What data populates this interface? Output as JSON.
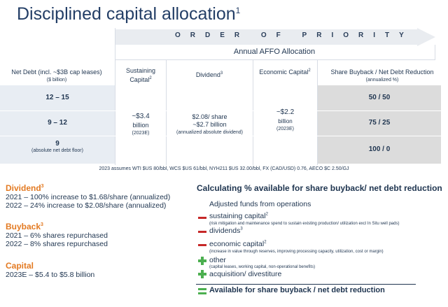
{
  "title": "Disciplined capital allocation",
  "title_sup": "1",
  "priority_banner": "ORDER OF PRIORITY",
  "affo_label": "Annual AFFO Allocation",
  "headers": {
    "net_debt": "Net Debt (incl. ~$3B cap leases)",
    "net_debt_sub": "($ billion)",
    "sustaining": "Sustaining Capital",
    "sustaining_sup": "2",
    "dividend": "Dividend",
    "dividend_sup": "3",
    "economic": "Economic Capital",
    "economic_sup": "2",
    "buyback": "Share Buyback / Net Debt Reduction",
    "buyback_sub": "(annualized %)"
  },
  "rows": [
    {
      "net_debt": "12 – 15",
      "net_debt_note": "",
      "split": "50 / 50"
    },
    {
      "net_debt": "9 – 12",
      "net_debt_note": "",
      "split": "75 / 25"
    },
    {
      "net_debt": "9",
      "net_debt_note": "(absolute net debt floor)",
      "split": "100 / 0"
    }
  ],
  "sustaining_value": "~$3.4",
  "sustaining_unit": "billion",
  "sustaining_year": "(2023E)",
  "dividend_line1": "$2.08/ share",
  "dividend_line2": "~$2.7 billion",
  "dividend_line3": "(annualized absolute dividend)",
  "economic_value": "~$2.2",
  "economic_unit": "billion",
  "economic_year": "(2023E)",
  "assumptions": "2023 assumes WTI $US 80/bbl, WCS $US 61/bbl, NYH211 $US 32.00/bbl, FX (CAD/USD) 0.76, AECO $C 2.50/GJ",
  "left_sections": {
    "dividend_head": "Dividend",
    "dividend_sup": "3",
    "dividend_lines": [
      "2021 – 100% increase to $1.68/share (annualized)",
      "2022 – 24% increase to $2.08/share (annualized)"
    ],
    "buyback_head": "Buyback",
    "buyback_sup": "3",
    "buyback_lines": [
      "2021 – 6% shares repurchased",
      "2022 – 8% shares repurchased"
    ],
    "capital_head": "Capital",
    "capital_lines": [
      "2023E – $5.4 to $5.8 billion"
    ]
  },
  "calc": {
    "title": "Calculating % available for share buyback/ net debt reduction",
    "afo": "Adjusted funds from operations",
    "sustaining": "sustaining capital",
    "sustaining_sup": "2",
    "sustaining_note": "(risk mitigation and maintenance spend to sustain existing production/ utilization excl In Situ well pads)",
    "dividends": "dividends",
    "dividends_sup": "3",
    "economic": "economic capital",
    "economic_sup": "2",
    "economic_note": "(increase in value through reserves, improving processing capacity, utilization, cost or margin)",
    "other": "other",
    "other_note": "(capital leases, working capital, non-operational benefits)",
    "acquisition": "acquisition/ divestiture",
    "result": "Available for share buyback / net debt reduction"
  },
  "colors": {
    "title": "#233e66",
    "orange": "#e37a22",
    "band": "#e8edf3",
    "band_right": "#dcdcdc",
    "minus": "#c62828",
    "plus": "#4caf50"
  }
}
